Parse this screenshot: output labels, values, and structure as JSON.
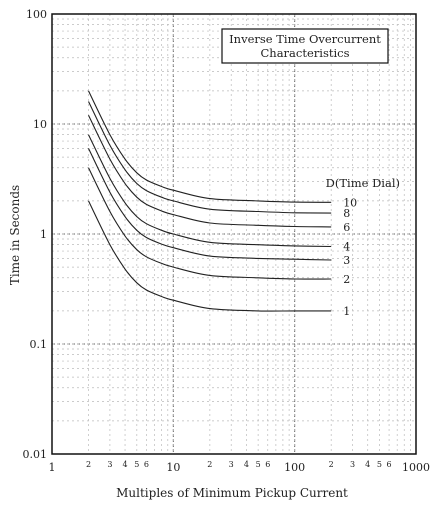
{
  "chart_data": {
    "type": "line",
    "title": "Inverse Time Overcurrent Characteristics",
    "title_lines": [
      "Inverse Time Overcurrent",
      "Characteristics"
    ],
    "xlabel": "Multiples of Minimum Pickup Current",
    "ylabel": "Time in Seconds",
    "x_scale": "log",
    "y_scale": "log",
    "xlim": [
      1,
      1000
    ],
    "ylim": [
      0.01,
      100
    ],
    "grid": true,
    "series_legend_title": "D(Time Dial)",
    "x_major_tick_labels": [
      {
        "value": 1,
        "label": "1"
      },
      {
        "value": 10,
        "label": "10"
      },
      {
        "value": 100,
        "label": "100"
      },
      {
        "value": 1000,
        "label": "1000"
      }
    ],
    "x_minor_tick_labels": [
      {
        "value": 2,
        "label": "2"
      },
      {
        "value": 3,
        "label": "3"
      },
      {
        "value": 4,
        "label": "4"
      },
      {
        "value": 5,
        "label": "5"
      },
      {
        "value": 6,
        "label": "6"
      },
      {
        "value": 20,
        "label": "2"
      },
      {
        "value": 30,
        "label": "3"
      },
      {
        "value": 40,
        "label": "4"
      },
      {
        "value": 50,
        "label": "5"
      },
      {
        "value": 60,
        "label": "6"
      },
      {
        "value": 200,
        "label": "2"
      },
      {
        "value": 300,
        "label": "3"
      },
      {
        "value": 400,
        "label": "4"
      },
      {
        "value": 500,
        "label": "5"
      },
      {
        "value": 600,
        "label": "6"
      }
    ],
    "y_tick_labels": [
      {
        "value": 0.01,
        "label": "0.01"
      },
      {
        "value": 0.1,
        "label": "0.1"
      },
      {
        "value": 1,
        "label": "1"
      },
      {
        "value": 10,
        "label": "10"
      },
      {
        "value": 100,
        "label": "100"
      }
    ],
    "series": [
      {
        "name": "1",
        "x": [
          2,
          3,
          4,
          5,
          6,
          8,
          10,
          20,
          50,
          100,
          200
        ],
        "y": [
          2.0,
          0.8,
          0.48,
          0.36,
          0.31,
          0.27,
          0.25,
          0.21,
          0.2,
          0.2,
          0.2
        ]
      },
      {
        "name": "2",
        "x": [
          2,
          3,
          4,
          5,
          6,
          8,
          10,
          20,
          50,
          100,
          200
        ],
        "y": [
          4.0,
          1.6,
          0.96,
          0.72,
          0.62,
          0.54,
          0.5,
          0.42,
          0.4,
          0.39,
          0.39
        ]
      },
      {
        "name": "3",
        "x": [
          2,
          3,
          4,
          5,
          6,
          8,
          10,
          20,
          50,
          100,
          200
        ],
        "y": [
          6.0,
          2.4,
          1.44,
          1.08,
          0.93,
          0.81,
          0.75,
          0.63,
          0.6,
          0.59,
          0.58
        ]
      },
      {
        "name": "4",
        "x": [
          2,
          3,
          4,
          5,
          6,
          8,
          10,
          20,
          50,
          100,
          200
        ],
        "y": [
          8.0,
          3.2,
          1.92,
          1.44,
          1.24,
          1.08,
          1.0,
          0.84,
          0.8,
          0.78,
          0.77
        ]
      },
      {
        "name": "6",
        "x": [
          2,
          3,
          4,
          5,
          6,
          8,
          10,
          20,
          50,
          100,
          200
        ],
        "y": [
          12.0,
          4.8,
          2.88,
          2.16,
          1.86,
          1.62,
          1.5,
          1.26,
          1.2,
          1.17,
          1.16
        ]
      },
      {
        "name": "8",
        "x": [
          2,
          3,
          4,
          5,
          6,
          8,
          10,
          20,
          50,
          100,
          200
        ],
        "y": [
          16.0,
          6.4,
          3.84,
          2.88,
          2.48,
          2.16,
          2.0,
          1.68,
          1.6,
          1.56,
          1.55
        ]
      },
      {
        "name": "10",
        "x": [
          2,
          3,
          4,
          5,
          6,
          8,
          10,
          20,
          50,
          100,
          200
        ],
        "y": [
          20.0,
          8.0,
          4.8,
          3.6,
          3.1,
          2.7,
          2.5,
          2.1,
          2.0,
          1.95,
          1.94
        ]
      }
    ]
  }
}
